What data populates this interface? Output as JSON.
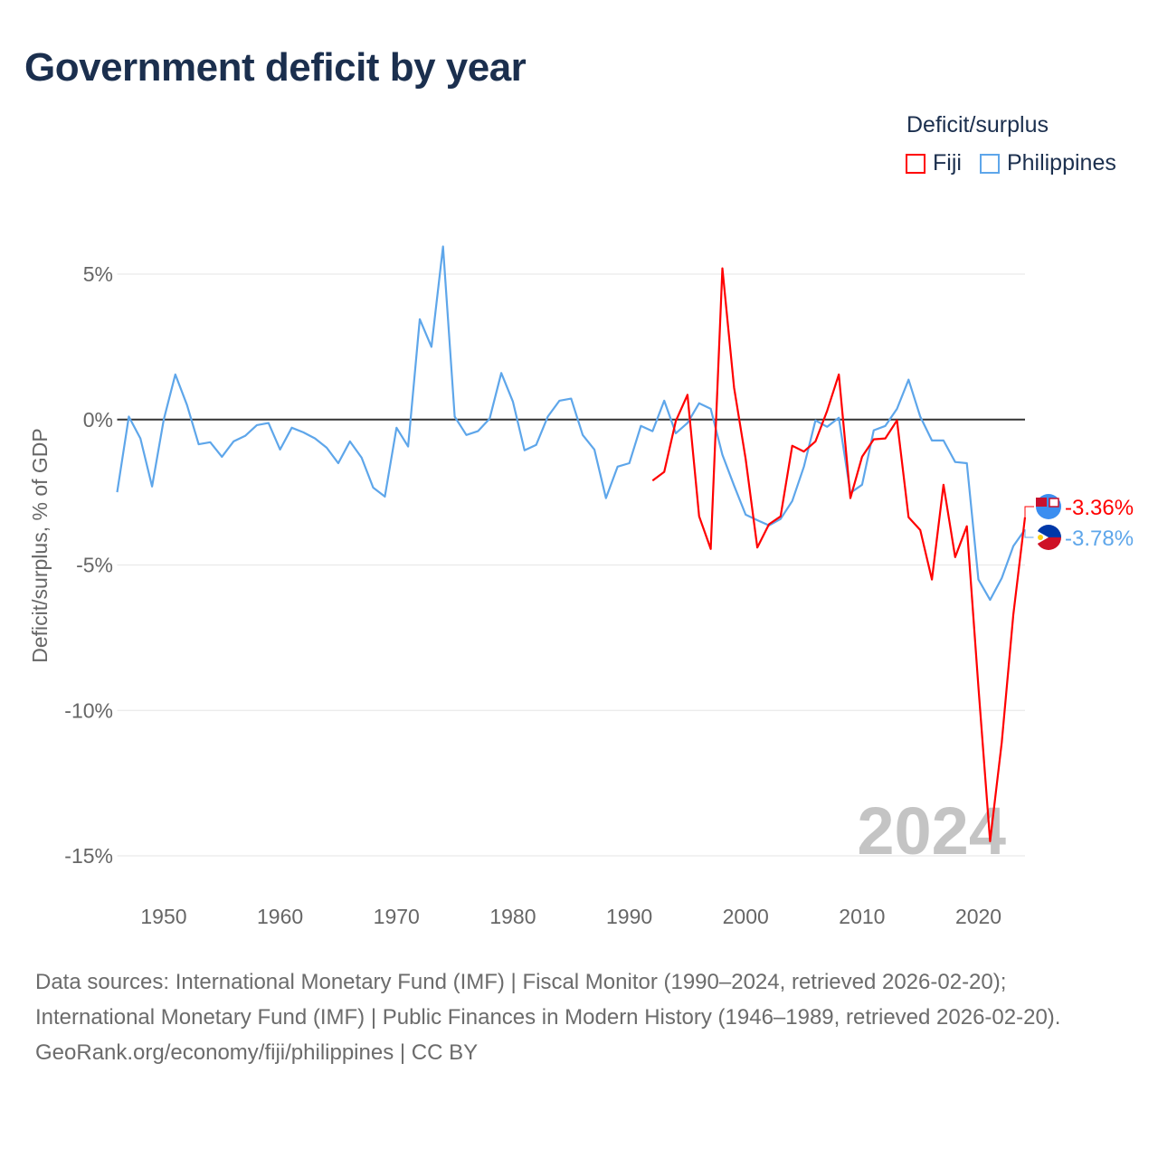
{
  "title": "Government deficit by year",
  "legend": {
    "title": "Deficit/surplus",
    "items": [
      {
        "label": "Fiji",
        "color": "#ff0000"
      },
      {
        "label": "Philippines",
        "color": "#5ea6ea"
      }
    ]
  },
  "footer": {
    "sources": "Data sources: International Monetary Fund (IMF) | Fiscal Monitor (1990–2024, retrieved 2026-02-20); International Monetary Fund (IMF) | Public Finances in Modern History (1946–1989, retrieved 2026-02-20).",
    "credit": "GeoRank.org/economy/fiji/philippines | CC BY"
  },
  "chart_data": {
    "type": "line",
    "title": "Government deficit by year",
    "xlabel": "",
    "ylabel": "Deficit/surplus, % of GDP",
    "xlim": [
      1946,
      2024
    ],
    "ylim": [
      -15,
      5
    ],
    "xticks": [
      1950,
      1960,
      1970,
      1980,
      1990,
      2000,
      2010,
      2020
    ],
    "yticks": [
      {
        "v": 5,
        "label": "5%"
      },
      {
        "v": 0,
        "label": "0%"
      },
      {
        "v": -5,
        "label": "-5%"
      },
      {
        "v": -10,
        "label": "-10%"
      },
      {
        "v": -15,
        "label": "-15%"
      }
    ],
    "year_watermark": "2024",
    "series": [
      {
        "name": "Philippines",
        "color": "#5ea6ea",
        "start_year": 1946,
        "end_label": "-3.78%",
        "values": [
          -2.5,
          0.1,
          -0.65,
          -2.3,
          0.0,
          1.55,
          0.5,
          -0.85,
          -0.78,
          -1.28,
          -0.75,
          -0.56,
          -0.19,
          -0.12,
          -1.03,
          -0.28,
          -0.44,
          -0.65,
          -0.97,
          -1.5,
          -0.75,
          -1.31,
          -2.34,
          -2.65,
          -0.28,
          -0.93,
          3.45,
          2.5,
          5.95,
          0.1,
          -0.53,
          -0.4,
          0.03,
          1.6,
          0.62,
          -1.06,
          -0.87,
          0.1,
          0.65,
          0.72,
          -0.53,
          -1.03,
          -2.7,
          -1.62,
          -1.5,
          -0.22,
          -0.4,
          0.65,
          -0.47,
          -0.12,
          0.56,
          0.37,
          -1.21,
          -2.27,
          -3.27,
          -3.46,
          -3.64,
          -3.42,
          -2.8,
          -1.62,
          -0.03,
          -0.25,
          0.06,
          -2.52,
          -2.24,
          -0.37,
          -0.22,
          0.37,
          1.37,
          0.1,
          -0.72,
          -0.72,
          -1.46,
          -1.5,
          -5.5,
          -6.2,
          -5.45,
          -4.35,
          -3.78
        ]
      },
      {
        "name": "Fiji",
        "color": "#ff0000",
        "start_year": 1992,
        "end_label": "-3.36%",
        "values": [
          -2.1,
          -1.8,
          -0.05,
          0.85,
          -3.33,
          -4.45,
          5.2,
          1.1,
          -1.35,
          -4.4,
          -3.6,
          -3.33,
          -0.9,
          -1.1,
          -0.75,
          0.3,
          1.55,
          -2.7,
          -1.28,
          -0.68,
          -0.65,
          -0.03,
          -3.36,
          -3.8,
          -5.5,
          -2.24,
          -4.73,
          -3.67,
          -9.2,
          -14.5,
          -11.1,
          -6.7,
          -3.36
        ]
      }
    ]
  }
}
